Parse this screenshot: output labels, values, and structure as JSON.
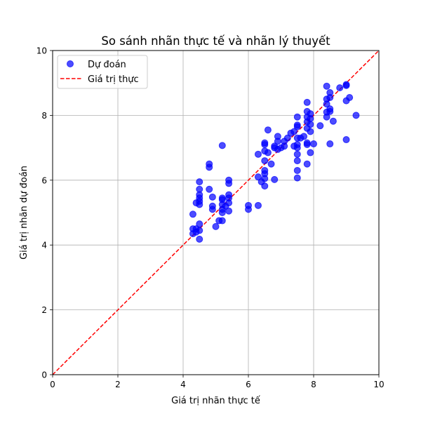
{
  "chart_data": {
    "type": "scatter",
    "title": "So sánh nhãn thực tế và nhãn lý thuyết",
    "xlabel": "Giá trị nhãn thực tế",
    "ylabel": "Giá trị nhãn dự đoán",
    "xlim": [
      0,
      10
    ],
    "ylim": [
      0,
      10
    ],
    "xticks": [
      "0",
      "2",
      "4",
      "6",
      "8",
      "10"
    ],
    "yticks": [
      "0",
      "2",
      "4",
      "6",
      "8",
      "10"
    ],
    "grid": true,
    "legend_placement": "top-left",
    "colors": {
      "scatter": "#0000ff",
      "line": "#ff0000",
      "grid": "#b0b0b0"
    },
    "series": [
      {
        "name": "Dự đoán",
        "kind": "scatter",
        "points": [
          [
            4.3,
            4.5
          ],
          [
            4.3,
            4.35
          ],
          [
            4.3,
            4.95
          ],
          [
            4.4,
            4.4
          ],
          [
            4.4,
            4.5
          ],
          [
            4.4,
            5.3
          ],
          [
            4.5,
            4.18
          ],
          [
            4.5,
            4.45
          ],
          [
            4.5,
            4.65
          ],
          [
            4.5,
            5.25
          ],
          [
            4.5,
            5.35
          ],
          [
            4.5,
            5.45
          ],
          [
            4.5,
            5.55
          ],
          [
            4.5,
            5.72
          ],
          [
            4.5,
            5.95
          ],
          [
            4.8,
            6.4
          ],
          [
            4.8,
            6.5
          ],
          [
            4.8,
            5.72
          ],
          [
            4.9,
            5.48
          ],
          [
            4.9,
            5.2
          ],
          [
            4.9,
            5.1
          ],
          [
            5.0,
            4.57
          ],
          [
            5.1,
            4.75
          ],
          [
            5.2,
            4.75
          ],
          [
            5.2,
            5.0
          ],
          [
            5.2,
            5.1
          ],
          [
            5.2,
            5.25
          ],
          [
            5.2,
            5.4
          ],
          [
            5.2,
            5.45
          ],
          [
            5.2,
            7.07
          ],
          [
            5.3,
            5.2
          ],
          [
            5.4,
            5.05
          ],
          [
            5.4,
            5.3
          ],
          [
            5.4,
            5.45
          ],
          [
            5.4,
            5.55
          ],
          [
            5.4,
            5.9
          ],
          [
            5.4,
            6.0
          ],
          [
            6.0,
            5.1
          ],
          [
            6.0,
            5.22
          ],
          [
            6.3,
            5.22
          ],
          [
            6.3,
            6.1
          ],
          [
            6.3,
            6.8
          ],
          [
            6.4,
            5.95
          ],
          [
            6.5,
            5.82
          ],
          [
            6.5,
            6.05
          ],
          [
            6.5,
            6.2
          ],
          [
            6.5,
            6.3
          ],
          [
            6.5,
            6.6
          ],
          [
            6.5,
            6.9
          ],
          [
            6.5,
            7.1
          ],
          [
            6.5,
            7.15
          ],
          [
            6.6,
            6.85
          ],
          [
            6.6,
            7.55
          ],
          [
            6.7,
            6.5
          ],
          [
            6.8,
            6.02
          ],
          [
            6.8,
            7.0
          ],
          [
            6.8,
            7.05
          ],
          [
            6.9,
            6.95
          ],
          [
            6.9,
            7.2
          ],
          [
            6.9,
            7.35
          ],
          [
            7.0,
            7.0
          ],
          [
            7.1,
            7.05
          ],
          [
            7.1,
            7.2
          ],
          [
            7.2,
            7.3
          ],
          [
            7.3,
            7.45
          ],
          [
            7.4,
            7.05
          ],
          [
            7.4,
            7.5
          ],
          [
            7.5,
            6.07
          ],
          [
            7.5,
            6.3
          ],
          [
            7.5,
            6.6
          ],
          [
            7.5,
            6.8
          ],
          [
            7.5,
            7.0
          ],
          [
            7.5,
            7.1
          ],
          [
            7.5,
            7.3
          ],
          [
            7.5,
            7.65
          ],
          [
            7.5,
            7.7
          ],
          [
            7.5,
            7.95
          ],
          [
            7.6,
            7.3
          ],
          [
            7.7,
            7.35
          ],
          [
            7.8,
            6.5
          ],
          [
            7.8,
            7.1
          ],
          [
            7.8,
            7.15
          ],
          [
            7.8,
            7.6
          ],
          [
            7.8,
            7.8
          ],
          [
            7.8,
            7.95
          ],
          [
            7.8,
            8.12
          ],
          [
            7.8,
            8.4
          ],
          [
            7.9,
            6.85
          ],
          [
            7.9,
            7.5
          ],
          [
            7.9,
            7.72
          ],
          [
            7.9,
            7.9
          ],
          [
            7.9,
            8.05
          ],
          [
            8.0,
            7.12
          ],
          [
            8.2,
            7.68
          ],
          [
            8.4,
            7.95
          ],
          [
            8.4,
            8.1
          ],
          [
            8.4,
            8.35
          ],
          [
            8.4,
            8.5
          ],
          [
            8.4,
            8.9
          ],
          [
            8.5,
            7.12
          ],
          [
            8.5,
            8.12
          ],
          [
            8.5,
            8.2
          ],
          [
            8.5,
            8.55
          ],
          [
            8.5,
            8.7
          ],
          [
            8.6,
            7.82
          ],
          [
            8.8,
            8.85
          ],
          [
            9.0,
            7.25
          ],
          [
            9.0,
            8.45
          ],
          [
            9.0,
            8.92
          ],
          [
            9.0,
            8.95
          ],
          [
            9.1,
            8.55
          ],
          [
            9.3,
            8.0
          ]
        ]
      },
      {
        "name": "Giá trị thực",
        "kind": "line",
        "style": "dashed",
        "points": [
          [
            0,
            0
          ],
          [
            10,
            10
          ]
        ]
      }
    ]
  }
}
